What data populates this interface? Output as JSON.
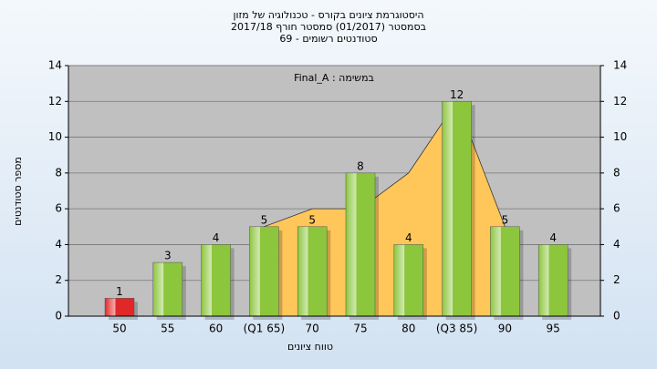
{
  "chart_data": {
    "type": "bar",
    "title": "היסטוגרמת ציונים בקורס - טכנולוגיה של מזון",
    "subtitle": "בסמסטר (01/2017) סמסטר חורף 2017/18",
    "subtitle2": "סטודנטים רשומים - 69",
    "annotation": "במשימה : Final_A",
    "x_label": "טווח ציונים",
    "y_label": "מספר סטודנטים",
    "categories": [
      "50",
      "55",
      "60",
      "(Q1 65)",
      "70",
      "75",
      "80",
      "(Q3 85)",
      "90",
      "95"
    ],
    "values": [
      1,
      3,
      4,
      5,
      5,
      8,
      4,
      12,
      5,
      4
    ],
    "colors": [
      "#e02828",
      "#8cc63c",
      "#8cc63c",
      "#8cc63c",
      "#8cc63c",
      "#8cc63c",
      "#8cc63c",
      "#8cc63c",
      "#8cc63c",
      "#8cc63c"
    ],
    "area": {
      "color": "#ffc65a",
      "values": [
        null,
        null,
        null,
        5,
        6,
        6,
        8,
        12,
        5,
        null
      ]
    },
    "ylim": [
      0,
      14
    ],
    "yticks": [
      0,
      2,
      4,
      6,
      8,
      10,
      12,
      14
    ],
    "grid": true
  }
}
